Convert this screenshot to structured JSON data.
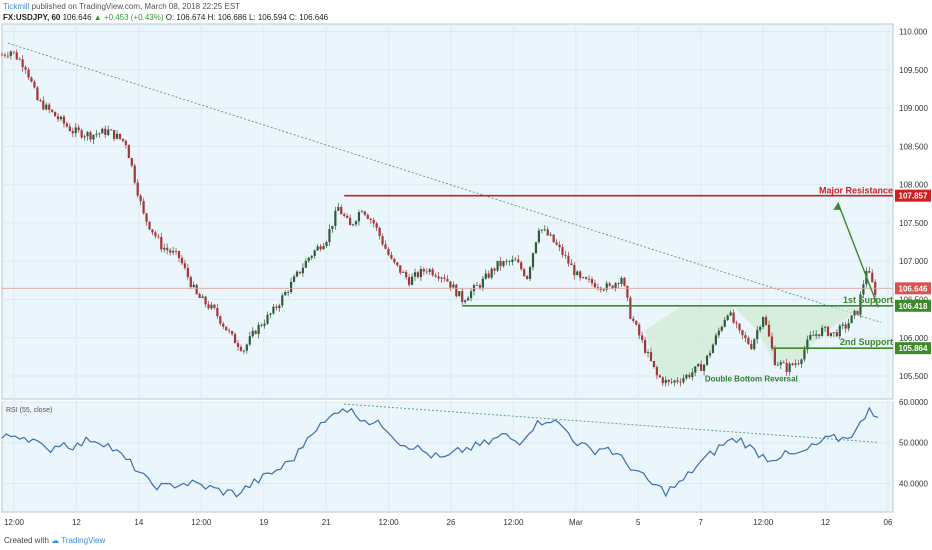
{
  "header": {
    "line1": {
      "brand": "Tickmill",
      "text": "published on TradingView.com, March 08, 2018 22:25 EST"
    },
    "line2": {
      "symbol": "FX:USDJPY, 60",
      "last": "106.646",
      "change": "▲ +0.453 (+0.43%)",
      "open": "O: 106.674",
      "high": "H: 106.686",
      "low": "L: 106.594",
      "close": "C: 106.646"
    }
  },
  "footer": {
    "text": "Created with",
    "brand": "TradingView"
  },
  "colors": {
    "background": "#eaf5fc",
    "grid": "#dfe9f0",
    "candle_up": "#2f5d3a",
    "candle_down": "#a33636",
    "resistance": "#cc1f1f",
    "support": "#3e8a2a",
    "rsi_line": "#3d6fa8",
    "trendline": "#6aa08a"
  },
  "chart_data": [
    {
      "type": "candlestick",
      "ylim": [
        105.2,
        110.1
      ],
      "yticks": [
        "110.000",
        "109.500",
        "109.000",
        "108.500",
        "108.000",
        "107.500",
        "107.000",
        "106.500",
        "106.000",
        "105.500"
      ],
      "xticks": [
        "12:00",
        "12",
        "14",
        "12:00",
        "19",
        "21",
        "12:00",
        "26",
        "12:00",
        "Mar",
        "5",
        "7",
        "12:00",
        "12",
        "06"
      ],
      "path_points": [
        {
          "t": 0,
          "y": 109.7
        },
        {
          "t": 3,
          "y": 109.75
        },
        {
          "t": 8,
          "y": 109.55
        },
        {
          "t": 12,
          "y": 109.1
        },
        {
          "t": 18,
          "y": 108.9
        },
        {
          "t": 24,
          "y": 108.7
        },
        {
          "t": 30,
          "y": 108.65
        },
        {
          "t": 36,
          "y": 108.7
        },
        {
          "t": 42,
          "y": 108.55
        },
        {
          "t": 48,
          "y": 107.6
        },
        {
          "t": 54,
          "y": 107.2
        },
        {
          "t": 60,
          "y": 107.05
        },
        {
          "t": 66,
          "y": 106.55
        },
        {
          "t": 72,
          "y": 106.35
        },
        {
          "t": 78,
          "y": 106.0
        },
        {
          "t": 82,
          "y": 105.85
        },
        {
          "t": 86,
          "y": 106.1
        },
        {
          "t": 92,
          "y": 106.35
        },
        {
          "t": 98,
          "y": 106.7
        },
        {
          "t": 104,
          "y": 107.05
        },
        {
          "t": 110,
          "y": 107.3
        },
        {
          "t": 114,
          "y": 107.7
        },
        {
          "t": 118,
          "y": 107.45
        },
        {
          "t": 122,
          "y": 107.7
        },
        {
          "t": 126,
          "y": 107.5
        },
        {
          "t": 132,
          "y": 107.0
        },
        {
          "t": 138,
          "y": 106.75
        },
        {
          "t": 144,
          "y": 106.9
        },
        {
          "t": 150,
          "y": 106.8
        },
        {
          "t": 156,
          "y": 106.5
        },
        {
          "t": 162,
          "y": 106.7
        },
        {
          "t": 168,
          "y": 106.95
        },
        {
          "t": 174,
          "y": 107.0
        },
        {
          "t": 178,
          "y": 106.8
        },
        {
          "t": 182,
          "y": 107.45
        },
        {
          "t": 186,
          "y": 107.3
        },
        {
          "t": 190,
          "y": 107.1
        },
        {
          "t": 196,
          "y": 106.75
        },
        {
          "t": 202,
          "y": 106.7
        },
        {
          "t": 206,
          "y": 106.65
        },
        {
          "t": 210,
          "y": 106.8
        },
        {
          "t": 213,
          "y": 106.3
        },
        {
          "t": 218,
          "y": 105.85
        },
        {
          "t": 222,
          "y": 105.5
        },
        {
          "t": 226,
          "y": 105.4
        },
        {
          "t": 232,
          "y": 105.5
        },
        {
          "t": 238,
          "y": 105.65
        },
        {
          "t": 242,
          "y": 106.0
        },
        {
          "t": 246,
          "y": 106.35
        },
        {
          "t": 250,
          "y": 106.05
        },
        {
          "t": 254,
          "y": 105.9
        },
        {
          "t": 258,
          "y": 106.3
        },
        {
          "t": 262,
          "y": 105.7
        },
        {
          "t": 266,
          "y": 105.6
        },
        {
          "t": 270,
          "y": 105.7
        },
        {
          "t": 274,
          "y": 106.0
        },
        {
          "t": 278,
          "y": 106.1
        },
        {
          "t": 282,
          "y": 106.05
        },
        {
          "t": 286,
          "y": 106.15
        },
        {
          "t": 290,
          "y": 106.35
        },
        {
          "t": 293,
          "y": 106.9
        },
        {
          "t": 296,
          "y": 106.6
        }
      ],
      "levels": [
        {
          "name": "Major Resistance",
          "value": 107.857,
          "label": "107.857",
          "color": "#cc1f1f"
        },
        {
          "name": "1st Support",
          "value": 106.418,
          "label": "106.418",
          "color": "#3e8a2a"
        },
        {
          "name": "2nd Support",
          "value": 105.864,
          "label": "105.864",
          "color": "#3e8a2a"
        }
      ],
      "last_price": {
        "value": 106.646,
        "label": "106.646"
      },
      "annotations": [
        {
          "text": "Double Bottom Reversal"
        }
      ]
    },
    {
      "type": "line",
      "title": "RSI (55, close)",
      "ylim": [
        33,
        60
      ],
      "yticks": [
        "60.0000",
        "50.0000",
        "40.0000"
      ],
      "path_points": [
        {
          "t": 0,
          "y": 51
        },
        {
          "t": 5,
          "y": 52
        },
        {
          "t": 10,
          "y": 51
        },
        {
          "t": 15,
          "y": 48
        },
        {
          "t": 20,
          "y": 50
        },
        {
          "t": 25,
          "y": 49
        },
        {
          "t": 30,
          "y": 51
        },
        {
          "t": 35,
          "y": 50
        },
        {
          "t": 40,
          "y": 47
        },
        {
          "t": 45,
          "y": 44
        },
        {
          "t": 50,
          "y": 40
        },
        {
          "t": 55,
          "y": 39
        },
        {
          "t": 60,
          "y": 40
        },
        {
          "t": 65,
          "y": 40
        },
        {
          "t": 70,
          "y": 39
        },
        {
          "t": 75,
          "y": 38
        },
        {
          "t": 80,
          "y": 37.5
        },
        {
          "t": 85,
          "y": 40
        },
        {
          "t": 90,
          "y": 42
        },
        {
          "t": 95,
          "y": 44
        },
        {
          "t": 100,
          "y": 47
        },
        {
          "t": 105,
          "y": 53
        },
        {
          "t": 110,
          "y": 55
        },
        {
          "t": 115,
          "y": 59
        },
        {
          "t": 120,
          "y": 57
        },
        {
          "t": 125,
          "y": 55
        },
        {
          "t": 130,
          "y": 54
        },
        {
          "t": 135,
          "y": 50
        },
        {
          "t": 140,
          "y": 49
        },
        {
          "t": 145,
          "y": 47
        },
        {
          "t": 150,
          "y": 46
        },
        {
          "t": 155,
          "y": 48
        },
        {
          "t": 160,
          "y": 49
        },
        {
          "t": 165,
          "y": 50
        },
        {
          "t": 170,
          "y": 52
        },
        {
          "t": 175,
          "y": 50
        },
        {
          "t": 180,
          "y": 54
        },
        {
          "t": 185,
          "y": 56
        },
        {
          "t": 190,
          "y": 54
        },
        {
          "t": 195,
          "y": 50
        },
        {
          "t": 200,
          "y": 48
        },
        {
          "t": 205,
          "y": 49
        },
        {
          "t": 210,
          "y": 46
        },
        {
          "t": 215,
          "y": 43
        },
        {
          "t": 220,
          "y": 40
        },
        {
          "t": 225,
          "y": 38
        },
        {
          "t": 230,
          "y": 40
        },
        {
          "t": 235,
          "y": 44
        },
        {
          "t": 240,
          "y": 47
        },
        {
          "t": 245,
          "y": 50
        },
        {
          "t": 250,
          "y": 51
        },
        {
          "t": 255,
          "y": 48
        },
        {
          "t": 260,
          "y": 46
        },
        {
          "t": 265,
          "y": 47
        },
        {
          "t": 270,
          "y": 47
        },
        {
          "t": 275,
          "y": 49
        },
        {
          "t": 280,
          "y": 51
        },
        {
          "t": 285,
          "y": 51
        },
        {
          "t": 290,
          "y": 53
        },
        {
          "t": 294,
          "y": 59
        },
        {
          "t": 297,
          "y": 56
        }
      ]
    }
  ]
}
